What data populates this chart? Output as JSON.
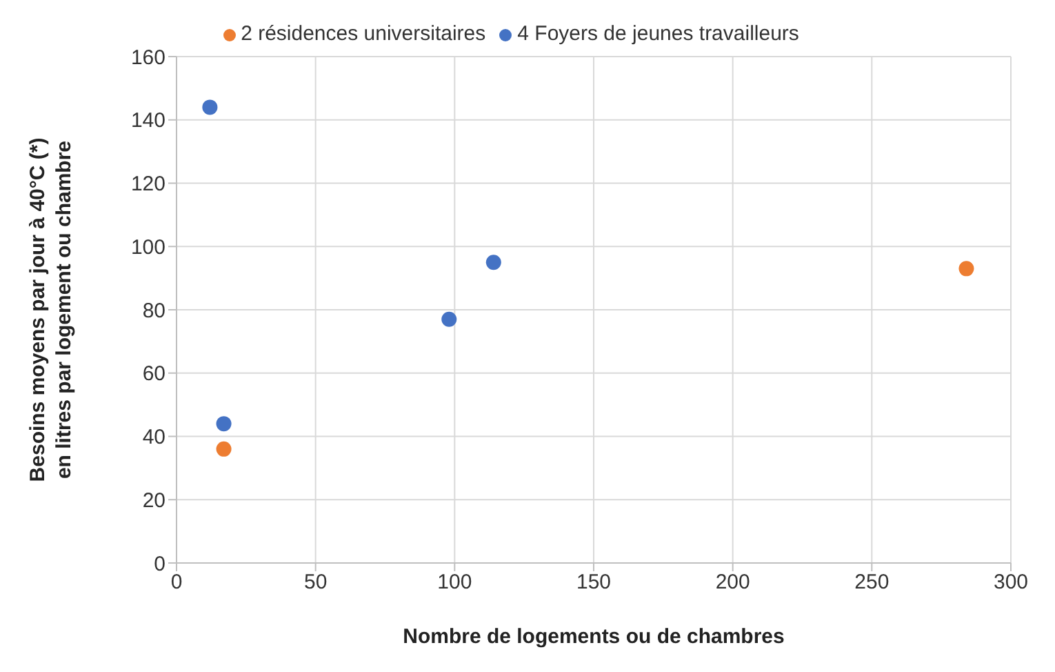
{
  "chart_data": {
    "type": "scatter",
    "xlabel": "Nombre de logements ou de chambres",
    "ylabel": "Besoins moyens par jour à 40°C (*)\nen litres  par logement ou chambre",
    "xlim": [
      0,
      300
    ],
    "xticks": [
      0,
      50,
      100,
      150,
      200,
      250,
      300
    ],
    "ylim": [
      0,
      160
    ],
    "yticks": [
      0,
      20,
      40,
      60,
      80,
      100,
      120,
      140,
      160
    ],
    "grid": true,
    "legend": "top",
    "marker": "circle",
    "series": [
      {
        "name": "2 résidences universitaires",
        "color": "#ed7d31",
        "x": [
          17,
          284
        ],
        "values": [
          36,
          93
        ]
      },
      {
        "name": "4 Foyers de jeunes travailleurs",
        "color": "#4472c4",
        "x": [
          12,
          17,
          98,
          114
        ],
        "values": [
          144,
          44,
          77,
          95
        ]
      }
    ]
  }
}
